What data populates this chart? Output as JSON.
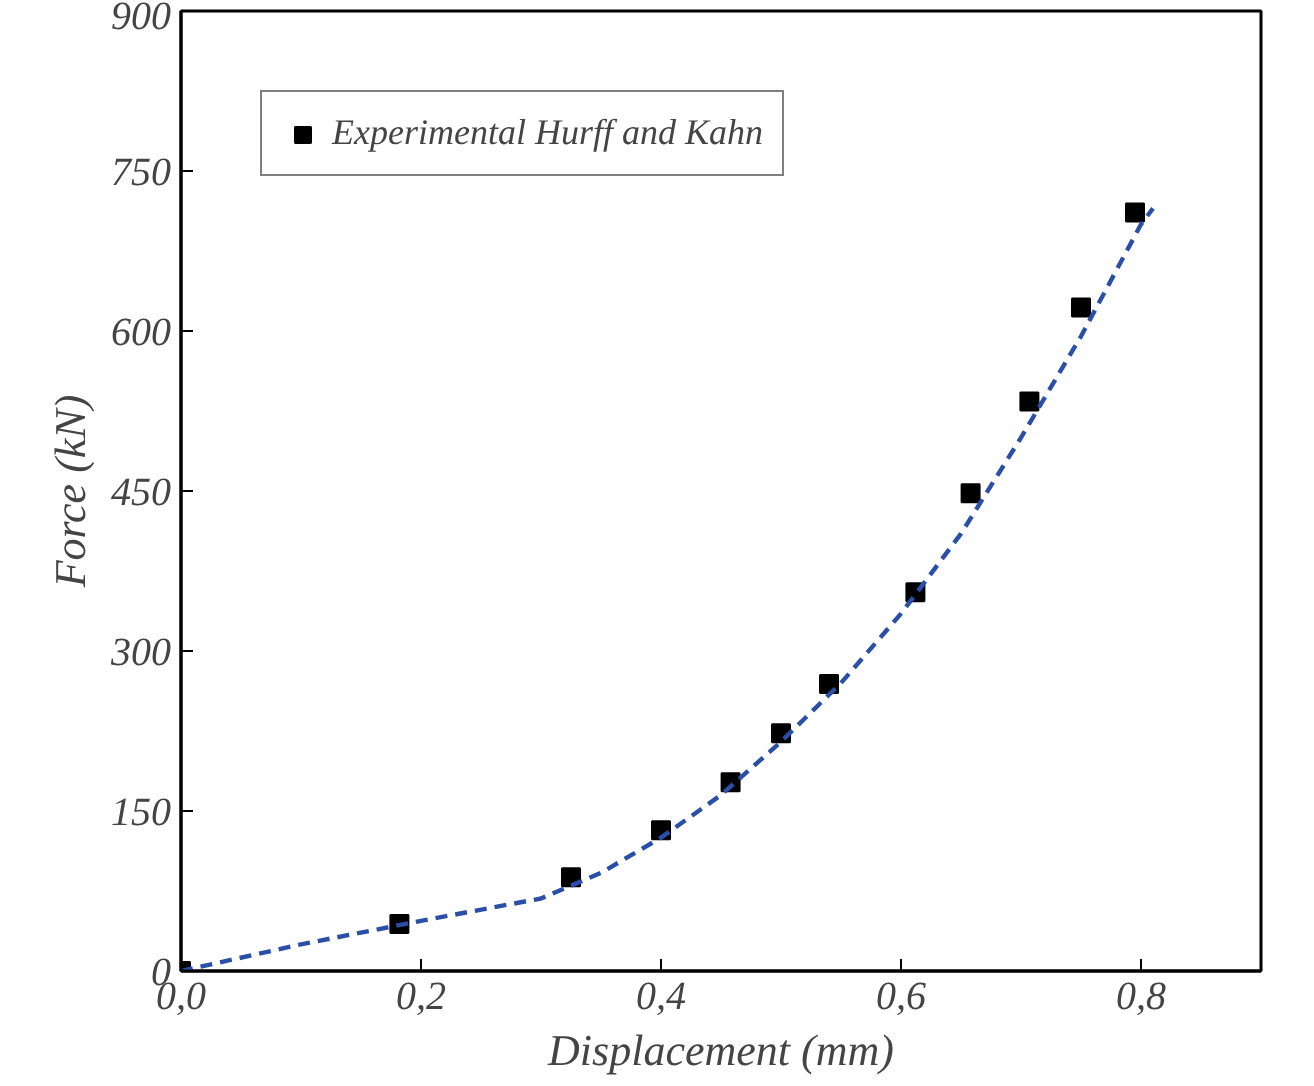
{
  "chart_data": {
    "type": "scatter",
    "xlabel": "Displacement (mm)",
    "ylabel": "Force (kN)",
    "xlim": [
      0,
      0.9
    ],
    "ylim": [
      0,
      900
    ],
    "xticks": [
      {
        "value": 0,
        "label": "0,0"
      },
      {
        "value": 0.2,
        "label": "0,2"
      },
      {
        "value": 0.4,
        "label": "0,4"
      },
      {
        "value": 0.6,
        "label": "0,6"
      },
      {
        "value": 0.8,
        "label": "0,8"
      }
    ],
    "yticks": [
      0,
      150,
      300,
      450,
      600,
      750,
      900
    ],
    "grid": false,
    "legend": "top left",
    "series": [
      {
        "name": "Experimental Hurff and Kahn",
        "marker": "square",
        "color": "#000000",
        "x": [
          0,
          0.182,
          0.325,
          0.4,
          0.458,
          0.5,
          0.54,
          0.612,
          0.658,
          0.707,
          0.75,
          0.795
        ],
        "values": [
          0,
          44,
          88,
          132,
          177,
          223,
          269,
          355,
          448,
          534,
          622,
          711
        ]
      },
      {
        "type": "line",
        "line_style": "dashed",
        "color": "#2a4fa8",
        "x": [
          0,
          0.1,
          0.2,
          0.3,
          0.35,
          0.4,
          0.45,
          0.5,
          0.55,
          0.6,
          0.65,
          0.7,
          0.75,
          0.8,
          0.81
        ],
        "values": [
          0,
          25,
          47,
          68,
          92,
          125,
          165,
          215,
          270,
          335,
          410,
          500,
          595,
          700,
          715
        ]
      }
    ]
  }
}
